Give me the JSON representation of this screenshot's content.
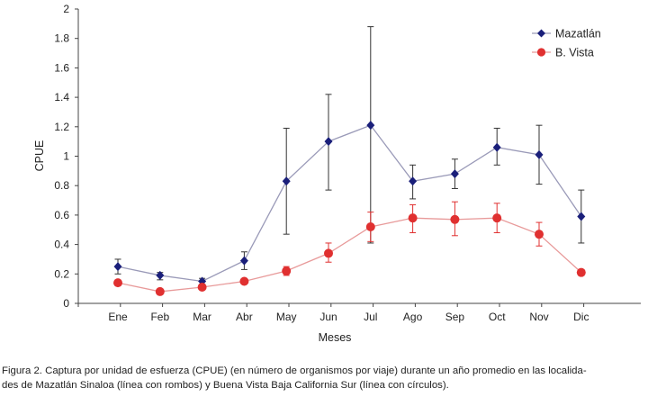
{
  "chart_data": {
    "type": "line",
    "xlabel": "Meses",
    "ylabel": "CPUE",
    "ylim": [
      0,
      2
    ],
    "y_ticks": [
      "0",
      "0.2",
      "0.4",
      "0.6",
      "0.8",
      "1",
      "1.2",
      "1.4",
      "1.6",
      "1.8",
      "2"
    ],
    "categories": [
      "Ene",
      "Feb",
      "Mar",
      "Abr",
      "May",
      "Jun",
      "Jul",
      "Ago",
      "Sep",
      "Oct",
      "Nov",
      "Dic"
    ],
    "legend_position": "top-right",
    "grid": false,
    "series": [
      {
        "name": "Mazatlán",
        "marker": "diamond",
        "color": "#1a1f7a",
        "line_color": "#9a9ab8",
        "values": [
          0.25,
          0.19,
          0.15,
          0.29,
          0.83,
          1.1,
          1.21,
          0.83,
          0.88,
          1.06,
          1.01,
          0.59
        ],
        "error_low": [
          0.2,
          0.16,
          0.13,
          0.23,
          0.47,
          0.77,
          0.41,
          0.71,
          0.78,
          0.94,
          0.81,
          0.41
        ],
        "error_high": [
          0.3,
          0.21,
          0.17,
          0.35,
          1.19,
          1.42,
          1.88,
          0.94,
          0.98,
          1.19,
          1.21,
          0.77
        ]
      },
      {
        "name": "B. Vista",
        "marker": "circle",
        "color": "#e03030",
        "line_color": "#e89a9a",
        "values": [
          0.14,
          0.08,
          0.11,
          0.15,
          0.22,
          0.34,
          0.52,
          0.58,
          0.57,
          0.58,
          0.47,
          0.21
        ],
        "error_low": [
          0.13,
          0.07,
          0.1,
          0.14,
          0.19,
          0.28,
          0.42,
          0.48,
          0.46,
          0.48,
          0.39,
          0.19
        ],
        "error_high": [
          0.15,
          0.09,
          0.12,
          0.16,
          0.25,
          0.41,
          0.62,
          0.67,
          0.69,
          0.68,
          0.55,
          0.23
        ]
      }
    ]
  },
  "caption": {
    "line1": "Figura 2. Captura por unidad de esfuerza (CPUE) (en número de organismos por viaje) durante un año promedio en las localida-",
    "line2": "des de Mazatlán Sinaloa (línea con rombos) y Buena Vista Baja California Sur (línea con círculos)."
  }
}
